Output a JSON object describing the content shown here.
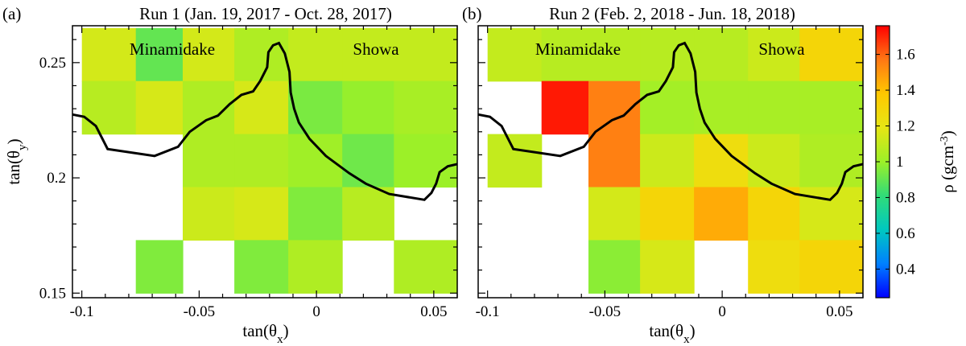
{
  "chart_data": [
    {
      "type": "heatmap",
      "panel_label": "(a)",
      "title": "Run 1 (Jan. 19, 2017 - Oct. 28, 2017)",
      "xlabel": "tan(θ_x)",
      "ylabel": "tan(θ_y)",
      "xlim": [
        -0.104,
        0.06
      ],
      "ylim": [
        0.148,
        0.266
      ],
      "x_edges": [
        -0.1,
        -0.077,
        -0.057,
        -0.035,
        -0.012,
        0.011,
        0.033,
        0.06
      ],
      "y_edges": [
        0.265,
        0.242,
        0.219,
        0.196,
        0.173,
        0.15
      ],
      "x_ticks": [
        -0.1,
        -0.05,
        0,
        0.05
      ],
      "x_tick_labels": [
        "-0.1",
        "-0.05",
        "0",
        "0.05"
      ],
      "y_ticks": [
        0.15,
        0.2,
        0.25
      ],
      "y_tick_labels": [
        "0.15",
        "0.2",
        "0.25"
      ],
      "values": [
        [
          1.14,
          0.9,
          1.14,
          1.05,
          1.1,
          1.1,
          1.1
        ],
        [
          1.07,
          1.15,
          1.05,
          1.15,
          0.94,
          0.99,
          1.03
        ],
        [
          null,
          null,
          1.05,
          1.05,
          1.01,
          0.92,
          1.0
        ],
        [
          null,
          null,
          1.12,
          1.15,
          0.95,
          1.07,
          null
        ],
        [
          null,
          0.95,
          null,
          0.95,
          1.05,
          null,
          1.05
        ]
      ],
      "annotations": [
        "Minamidake",
        "Showa"
      ],
      "outline": [
        [
          -0.104,
          0.2275
        ],
        [
          -0.099,
          0.2265
        ],
        [
          -0.094,
          0.2225
        ],
        [
          -0.089,
          0.2125
        ],
        [
          -0.069,
          0.2095
        ],
        [
          -0.059,
          0.2135
        ],
        [
          -0.054,
          0.22
        ],
        [
          -0.047,
          0.225
        ],
        [
          -0.042,
          0.227
        ],
        [
          -0.037,
          0.232
        ],
        [
          -0.032,
          0.236
        ],
        [
          -0.027,
          0.2375
        ],
        [
          -0.024,
          0.242
        ],
        [
          -0.021,
          0.248
        ],
        [
          -0.0205,
          0.2545
        ],
        [
          -0.0185,
          0.2575
        ],
        [
          -0.016,
          0.2585
        ],
        [
          -0.0135,
          0.254
        ],
        [
          -0.0115,
          0.246
        ],
        [
          -0.011,
          0.237
        ],
        [
          -0.0095,
          0.23
        ],
        [
          -0.0075,
          0.224
        ],
        [
          -0.003,
          0.217
        ],
        [
          0.004,
          0.2095
        ],
        [
          0.014,
          0.202
        ],
        [
          0.021,
          0.1975
        ],
        [
          0.031,
          0.193
        ],
        [
          0.046,
          0.1905
        ],
        [
          0.049,
          0.1935
        ],
        [
          0.051,
          0.1975
        ],
        [
          0.0525,
          0.2025
        ],
        [
          0.056,
          0.205
        ],
        [
          0.06,
          0.206
        ]
      ]
    },
    {
      "type": "heatmap",
      "panel_label": "(b)",
      "title": "Run 2 (Feb. 2, 2018 - Jun. 18, 2018)",
      "xlabel": "tan(θ_x)",
      "ylabel": "",
      "xlim": [
        -0.104,
        0.06
      ],
      "ylim": [
        0.148,
        0.266
      ],
      "x_edges": [
        -0.1,
        -0.077,
        -0.057,
        -0.035,
        -0.012,
        0.011,
        0.033,
        0.06
      ],
      "y_edges": [
        0.265,
        0.242,
        0.219,
        0.196,
        0.173,
        0.15
      ],
      "x_ticks": [
        -0.1,
        -0.05,
        0,
        0.05
      ],
      "x_tick_labels": [
        "-0.1",
        "-0.05",
        "0",
        "0.05"
      ],
      "y_ticks": [
        0.15,
        0.2,
        0.25
      ],
      "y_tick_labels": [
        "",
        "",
        ""
      ],
      "values": [
        [
          1.1,
          1.07,
          1.07,
          1.07,
          1.07,
          1.12,
          1.3
        ],
        [
          null,
          1.72,
          1.55,
          1.02,
          1.03,
          1.03,
          1.03
        ],
        [
          1.1,
          null,
          1.55,
          1.12,
          1.25,
          1.12,
          1.05
        ],
        [
          null,
          null,
          1.14,
          1.3,
          1.45,
          1.3,
          1.15
        ],
        [
          null,
          null,
          0.97,
          1.15,
          null,
          1.25,
          1.3
        ]
      ],
      "annotations": [
        "Minamidake",
        "Showa"
      ],
      "outline": [
        [
          -0.104,
          0.2275
        ],
        [
          -0.099,
          0.2265
        ],
        [
          -0.094,
          0.2225
        ],
        [
          -0.089,
          0.2125
        ],
        [
          -0.069,
          0.2095
        ],
        [
          -0.059,
          0.2135
        ],
        [
          -0.054,
          0.22
        ],
        [
          -0.047,
          0.225
        ],
        [
          -0.042,
          0.227
        ],
        [
          -0.037,
          0.232
        ],
        [
          -0.032,
          0.236
        ],
        [
          -0.027,
          0.2375
        ],
        [
          -0.024,
          0.242
        ],
        [
          -0.021,
          0.248
        ],
        [
          -0.0205,
          0.2545
        ],
        [
          -0.0185,
          0.2575
        ],
        [
          -0.016,
          0.2585
        ],
        [
          -0.0135,
          0.254
        ],
        [
          -0.0115,
          0.246
        ],
        [
          -0.011,
          0.237
        ],
        [
          -0.0095,
          0.23
        ],
        [
          -0.0075,
          0.224
        ],
        [
          -0.003,
          0.217
        ],
        [
          0.004,
          0.2095
        ],
        [
          0.014,
          0.202
        ],
        [
          0.021,
          0.1975
        ],
        [
          0.031,
          0.193
        ],
        [
          0.046,
          0.1905
        ],
        [
          0.049,
          0.1935
        ],
        [
          0.051,
          0.1975
        ],
        [
          0.0525,
          0.2025
        ],
        [
          0.056,
          0.205
        ],
        [
          0.06,
          0.206
        ]
      ]
    }
  ],
  "colorbar": {
    "label": "ρ (gcm",
    "label_exp": "-3",
    "label_close": ")",
    "range": [
      0.24,
      1.76
    ],
    "ticks": [
      0.4,
      0.6,
      0.8,
      1,
      1.2,
      1.4,
      1.6
    ],
    "tick_labels": [
      "0.4",
      "0.6",
      "0.8",
      "1",
      "1.2",
      "1.4",
      "1.6"
    ],
    "colormap": [
      "#0000ff",
      "#0080ff",
      "#00c8c0",
      "#30dc78",
      "#9cf028",
      "#e6e614",
      "#ffc800",
      "#ff7814",
      "#ff0000"
    ]
  }
}
